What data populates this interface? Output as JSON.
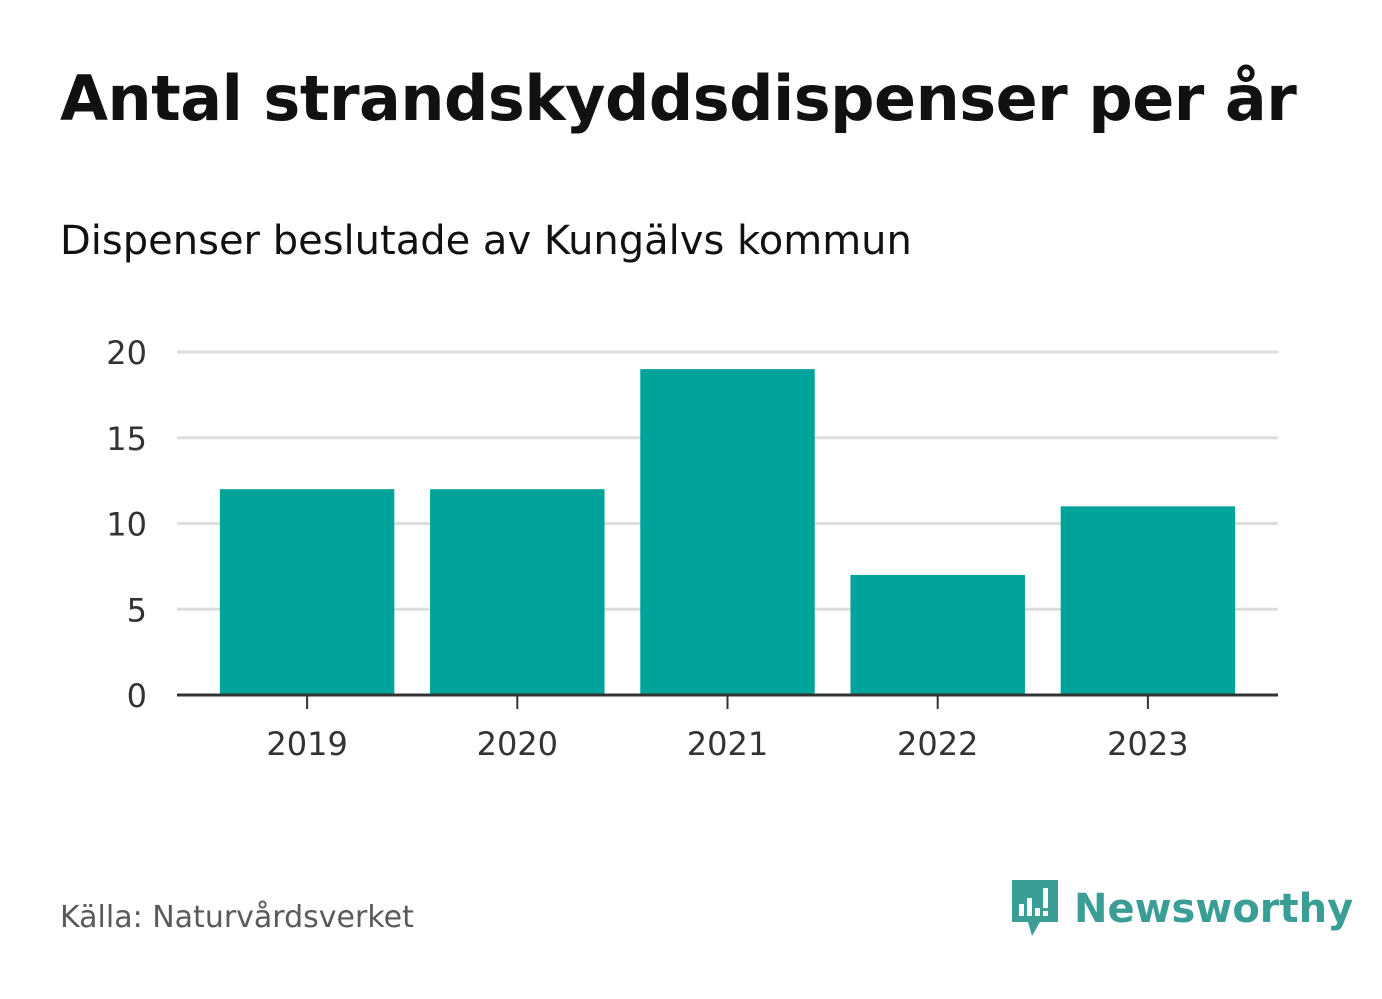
{
  "title": "Antal strandskyddsdispenser per år",
  "subtitle": "Dispenser beslutade av Kungälvs kommun",
  "source": "Källa: Naturvårdsverket",
  "brand": {
    "name": "Newsworthy",
    "icon": "newsworthy-logo-icon",
    "color": "#3a9e96"
  },
  "chart_data": {
    "type": "bar",
    "title": "Antal strandskyddsdispenser per år",
    "subtitle": "Dispenser beslutade av Kungälvs kommun",
    "categories": [
      "2019",
      "2020",
      "2021",
      "2022",
      "2023"
    ],
    "values": [
      12,
      12,
      19,
      7,
      11
    ],
    "xlabel": "",
    "ylabel": "",
    "ylim": [
      0,
      20
    ],
    "yticks": [
      0,
      5,
      10,
      15,
      20
    ],
    "grid": true,
    "bar_color": "#00a39a"
  }
}
